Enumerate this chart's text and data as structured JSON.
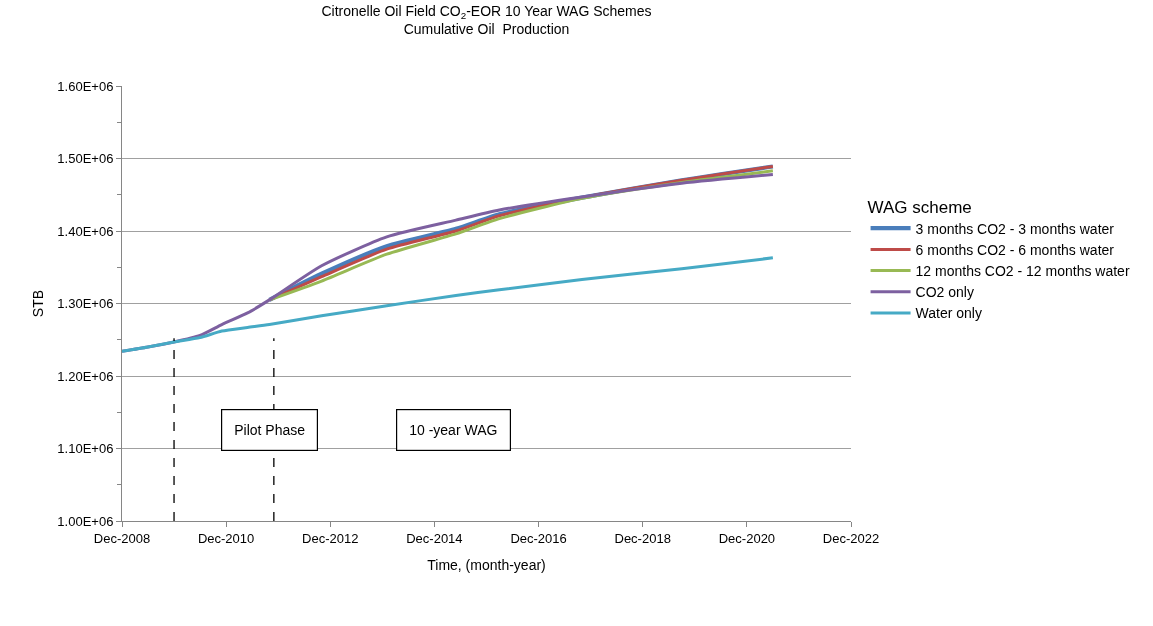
{
  "chart_data": {
    "type": "line",
    "title": "Citronelle Oil Field CO$_{2}$-EOR 10 Year WAG Schemes",
    "subtitle": "Cumulative Oil  Production",
    "xlabel": "Time, (month-year)",
    "ylabel": "STB",
    "legend_title": "WAG scheme",
    "x": [
      "2008-12",
      "2009-06",
      "2009-12",
      "2010-06",
      "2010-11",
      "2011-05",
      "2011-10",
      "2012-10",
      "2014-01",
      "2015-05",
      "2016-03",
      "2017-10",
      "2019-09",
      "2021-06"
    ],
    "series": [
      {
        "name": "3 months CO2 - 3 months water",
        "color": "#4a7ebb",
        "values": [
          null,
          null,
          null,
          null,
          null,
          null,
          1305000,
          1341000,
          1379000,
          1403000,
          1423000,
          1446000,
          1470000,
          1489000
        ]
      },
      {
        "name": "6 months CO2 - 6 months water",
        "color": "#be4b48",
        "values": [
          null,
          null,
          null,
          null,
          null,
          null,
          1305000,
          1337000,
          1375000,
          1400000,
          1421000,
          1446000,
          1470000,
          1489000
        ]
      },
      {
        "name": "12 months CO2 - 12 months water",
        "color": "#98b954",
        "values": [
          null,
          null,
          null,
          null,
          null,
          null,
          1305000,
          1331000,
          1368000,
          1396000,
          1417000,
          1445000,
          1467000,
          1483000
        ]
      },
      {
        "name": "CO2 only",
        "color": "#7d60a0",
        "values": [
          1234000,
          1240000,
          1247000,
          1256000,
          1271000,
          1287000,
          1305000,
          1352000,
          1392000,
          1415000,
          1429000,
          1447000,
          1466000,
          1478000
        ]
      },
      {
        "name": "Water only",
        "color": "#46aac5",
        "values": [
          1234000,
          1240000,
          1247000,
          1253000,
          1262000,
          1267000,
          1271000,
          1283000,
          1297000,
          1311000,
          1319000,
          1333000,
          1348000,
          1363000
        ]
      }
    ],
    "xlim": [
      "2008-12",
      "2022-12"
    ],
    "xticks": [
      {
        "value": "2008-12",
        "label": "Dec-2008"
      },
      {
        "value": "2010-12",
        "label": "Dec-2010"
      },
      {
        "value": "2012-12",
        "label": "Dec-2012"
      },
      {
        "value": "2014-12",
        "label": "Dec-2014"
      },
      {
        "value": "2016-12",
        "label": "Dec-2016"
      },
      {
        "value": "2018-12",
        "label": "Dec-2018"
      },
      {
        "value": "2020-12",
        "label": "Dec-2020"
      },
      {
        "value": "2022-12",
        "label": "Dec-2022"
      }
    ],
    "ylim": [
      1000000,
      1600000
    ],
    "yticks": [
      {
        "value": 1000000,
        "label": "1.00E+06"
      },
      {
        "value": 1100000,
        "label": "1.10E+06"
      },
      {
        "value": 1200000,
        "label": "1.20E+06"
      },
      {
        "value": 1300000,
        "label": "1.30E+06"
      },
      {
        "value": 1400000,
        "label": "1.40E+06"
      },
      {
        "value": 1500000,
        "label": "1.50E+06"
      },
      {
        "value": 1600000,
        "label": "1.60E+06"
      }
    ],
    "ref_lines": [
      {
        "axis": "x",
        "value": "2009-12",
        "label": null,
        "color": "#000000",
        "line_style": "dashed"
      },
      {
        "axis": "x",
        "value": "2011-11",
        "label": null,
        "color": "#000000",
        "line_style": "dashed"
      }
    ],
    "annotations": [
      "Pilot Phase",
      "10 -year WAG"
    ],
    "grid": "y",
    "legend": "right",
    "marker": "none",
    "line_style": "solid"
  }
}
